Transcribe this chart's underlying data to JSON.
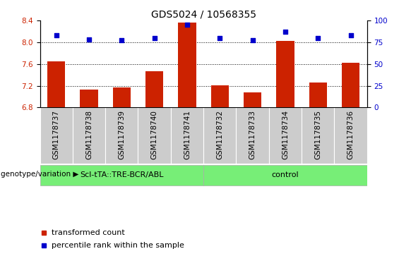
{
  "title": "GDS5024 / 10568355",
  "samples": [
    "GSM1178737",
    "GSM1178738",
    "GSM1178739",
    "GSM1178740",
    "GSM1178741",
    "GSM1178732",
    "GSM1178733",
    "GSM1178734",
    "GSM1178735",
    "GSM1178736"
  ],
  "bar_values": [
    7.65,
    7.13,
    7.17,
    7.47,
    8.36,
    7.21,
    7.08,
    8.02,
    7.26,
    7.62
  ],
  "dot_values": [
    83,
    78,
    77,
    80,
    95,
    80,
    77,
    87,
    80,
    83
  ],
  "ylim_left": [
    6.8,
    8.4
  ],
  "ylim_right": [
    0,
    100
  ],
  "yticks_left": [
    6.8,
    7.2,
    7.6,
    8.0,
    8.4
  ],
  "yticks_right": [
    0,
    25,
    50,
    75,
    100
  ],
  "bar_color": "#cc2200",
  "dot_color": "#0000cc",
  "group1_label": "Scl-tTA::TRE-BCR/ABL",
  "group2_label": "control",
  "group1_indices": [
    0,
    1,
    2,
    3,
    4
  ],
  "group2_indices": [
    5,
    6,
    7,
    8,
    9
  ],
  "group_bg_color": "#77ee77",
  "sample_bg_color": "#cccccc",
  "legend_bar_label": "transformed count",
  "legend_dot_label": "percentile rank within the sample",
  "genotype_label": "genotype/variation",
  "title_fontsize": 10,
  "tick_label_fontsize": 7.5,
  "group_label_fontsize": 8,
  "legend_fontsize": 8
}
